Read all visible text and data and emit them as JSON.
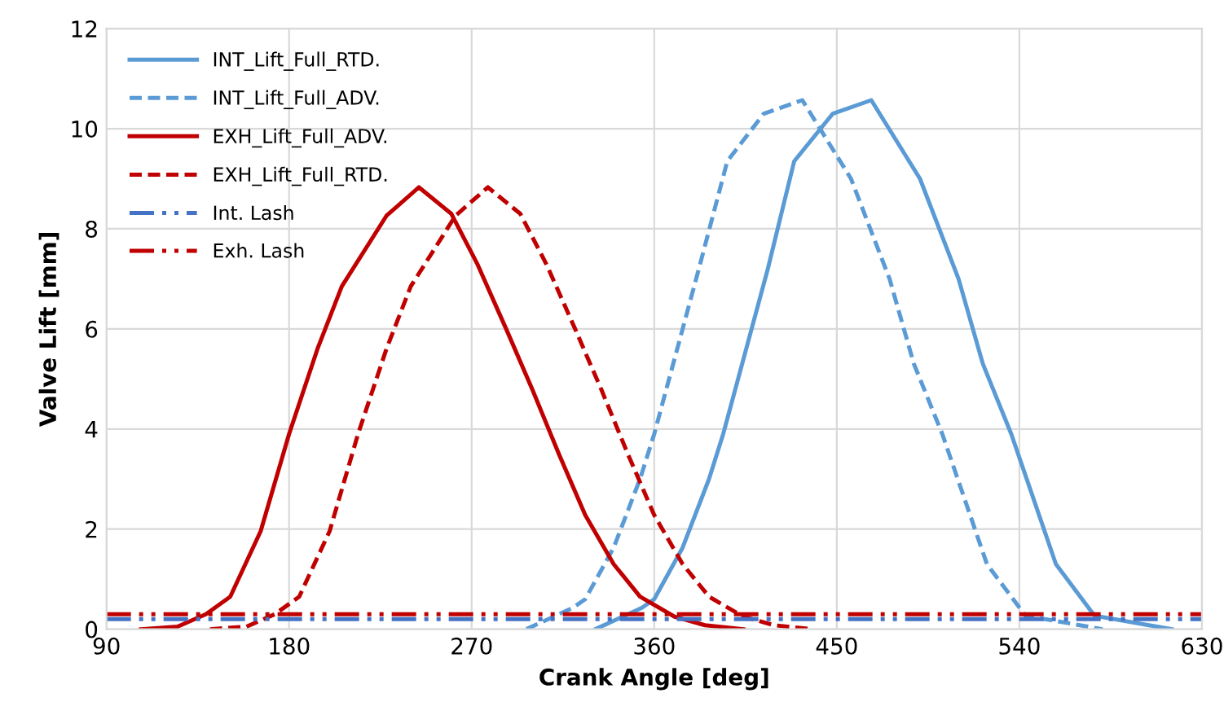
{
  "chart_data": {
    "type": "line",
    "xlabel": "Crank Angle [deg]",
    "ylabel": "Valve Lift [mm]",
    "xlim": [
      90,
      630
    ],
    "xticks": [
      90,
      180,
      270,
      360,
      450,
      540,
      630
    ],
    "ylim": [
      0,
      12
    ],
    "yticks": [
      0,
      2,
      4,
      6,
      8,
      10,
      12
    ],
    "grid": true,
    "legend": "top left",
    "marker": "none",
    "series": [
      {
        "name": "INT_Lift_Full_RTD.",
        "color": "#5b9bd5",
        "line_style": "solid",
        "x": [
          331,
          354,
          360,
          374,
          387,
          394,
          416,
          429,
          448,
          467,
          491,
          510,
          522,
          536,
          558,
          577,
          615
        ],
        "values": [
          0,
          0.43,
          0.6,
          1.63,
          3.0,
          3.9,
          7.2,
          9.35,
          10.3,
          10.57,
          9.0,
          7.0,
          5.3,
          3.9,
          1.3,
          0.27,
          0
        ]
      },
      {
        "name": "INT_Lift_Full_ADV.",
        "color": "#5b9bd5",
        "line_style": "dashed",
        "x": [
          297,
          320,
          326,
          340,
          353,
          360,
          382,
          396,
          414,
          433,
          457,
          476,
          488,
          502,
          524,
          543,
          581
        ],
        "values": [
          0,
          0.43,
          0.6,
          1.63,
          3.0,
          3.9,
          7.2,
          9.35,
          10.3,
          10.57,
          9.0,
          7.0,
          5.3,
          3.9,
          1.3,
          0.27,
          0
        ]
      },
      {
        "name": "EXH_Lift_Full_ADV.",
        "color": "#c00000",
        "line_style": "solid",
        "x": [
          107,
          125,
          139,
          151,
          166,
          180,
          194,
          206,
          228,
          244,
          260,
          273,
          287,
          300,
          313,
          326,
          340,
          353,
          370,
          385,
          404
        ],
        "values": [
          0,
          0.05,
          0.3,
          0.65,
          1.96,
          3.9,
          5.6,
          6.85,
          8.26,
          8.83,
          8.3,
          7.28,
          6.0,
          4.78,
          3.5,
          2.28,
          1.3,
          0.65,
          0.25,
          0.08,
          0
        ]
      },
      {
        "name": "EXH_Lift_Full_RTD.",
        "color": "#c00000",
        "line_style": "dashed",
        "x": [
          141,
          159,
          173,
          185,
          200,
          214,
          228,
          240,
          262,
          278,
          294,
          307,
          321,
          334,
          347,
          360,
          374,
          387,
          404,
          419,
          438
        ],
        "values": [
          0,
          0.05,
          0.3,
          0.65,
          1.96,
          3.9,
          5.6,
          6.85,
          8.26,
          8.83,
          8.3,
          7.28,
          6.0,
          4.78,
          3.5,
          2.28,
          1.3,
          0.65,
          0.25,
          0.08,
          0
        ]
      },
      {
        "name": "Int. Lash",
        "color": "#4472c4",
        "line_style": "dashdot",
        "x": [
          90,
          630
        ],
        "values": [
          0.2,
          0.2
        ]
      },
      {
        "name": "Exh. Lash",
        "color": "#c00000",
        "line_style": "dashdot",
        "x": [
          90,
          630
        ],
        "values": [
          0.3,
          0.3
        ]
      }
    ]
  }
}
